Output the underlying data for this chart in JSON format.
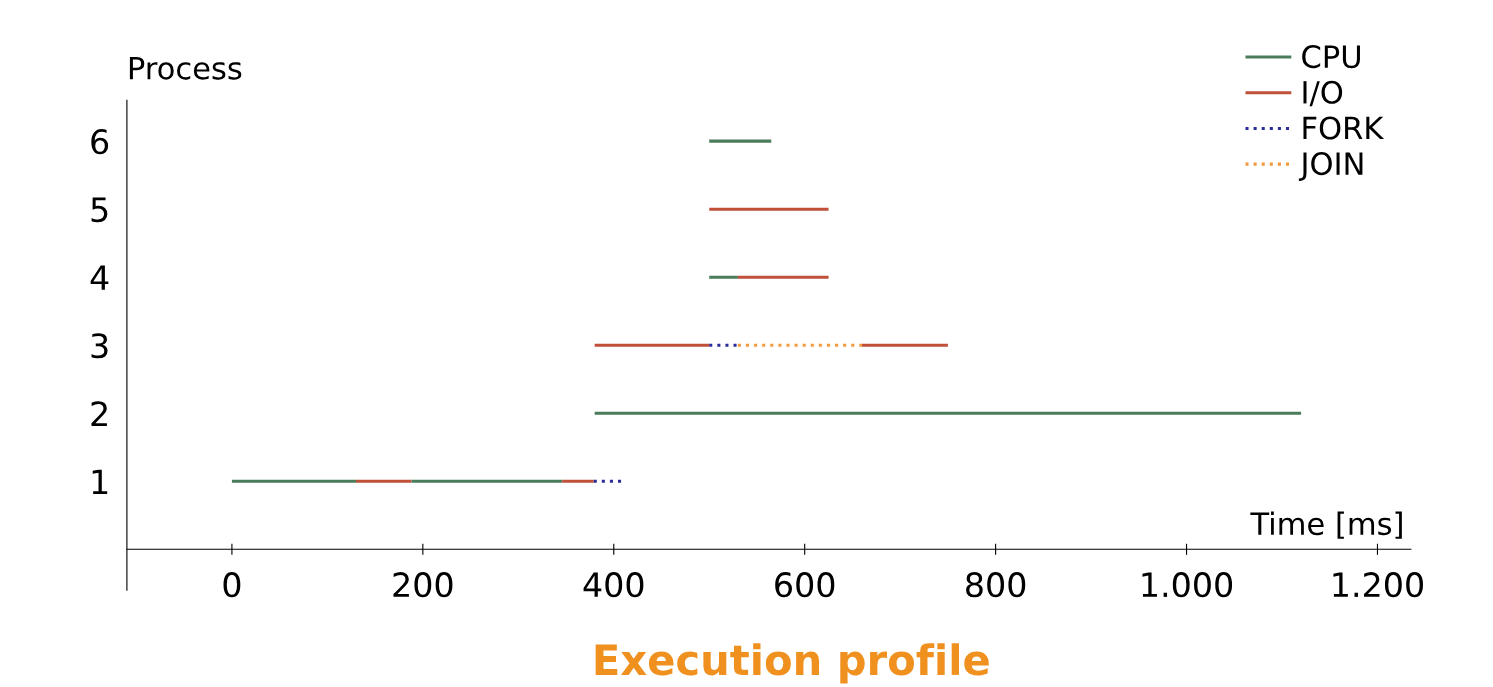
{
  "chart_data": {
    "type": "line",
    "title": "Execution profile",
    "xlabel": "Time [ms]",
    "ylabel": "Process",
    "xlim": [
      -110,
      1235
    ],
    "ylim": [
      -0.6,
      6.6
    ],
    "xticks": [
      0,
      200,
      400,
      600,
      800,
      {
        "value": 1000,
        "label": "1.000"
      },
      {
        "value": 1200,
        "label": "1.200"
      }
    ],
    "yticks": [
      1,
      2,
      3,
      4,
      5,
      6
    ],
    "grid": false,
    "legend": "top right",
    "marker": "none",
    "series": [
      {
        "name": "CPU",
        "color": "#4a7c5c",
        "line_style": "solid",
        "x": [
          0,
          130,
          null,
          188,
          346,
          null,
          380,
          1120,
          null,
          500,
          530,
          null,
          500,
          565
        ],
        "values": [
          1,
          1,
          null,
          1,
          1,
          null,
          2,
          2,
          null,
          4,
          4,
          null,
          6,
          6
        ]
      },
      {
        "name": "I/O",
        "color": "#c0503a",
        "line_style": "solid",
        "x": [
          130,
          188,
          null,
          346,
          379,
          null,
          380,
          500,
          null,
          660,
          750,
          null,
          530,
          625,
          null,
          500,
          625
        ],
        "values": [
          1,
          1,
          null,
          1,
          1,
          null,
          3,
          3,
          null,
          3,
          3,
          null,
          4,
          4,
          null,
          5,
          5
        ]
      },
      {
        "name": "FORK",
        "color": "#2b2b9c",
        "line_style": "dotted",
        "x": [
          379,
          408,
          null,
          500,
          530
        ],
        "values": [
          1,
          1,
          null,
          3,
          3
        ]
      },
      {
        "name": "JOIN",
        "color": "#f5983a",
        "line_style": "dotted",
        "x": [
          530,
          660
        ],
        "values": [
          3,
          3
        ]
      }
    ]
  }
}
